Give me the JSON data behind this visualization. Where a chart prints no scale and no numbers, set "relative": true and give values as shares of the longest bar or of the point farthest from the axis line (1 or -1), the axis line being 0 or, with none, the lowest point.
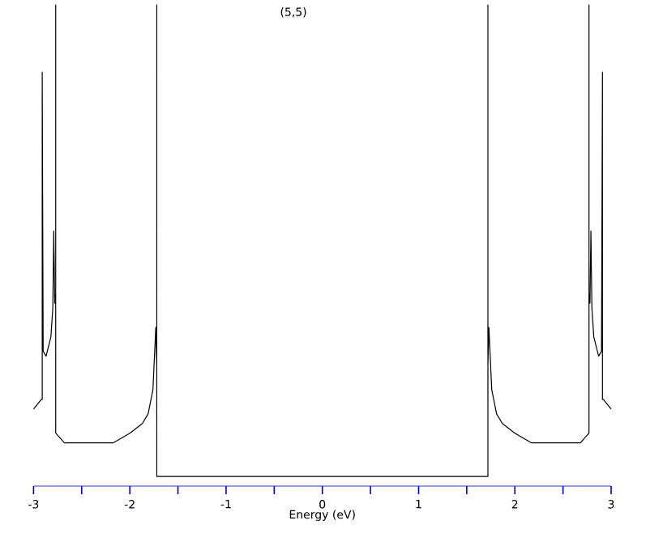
{
  "chart_data": {
    "type": "line",
    "title": "(5,5)",
    "xlabel": "Energy (eV)",
    "relative": true,
    "color": "#000000",
    "xlim": [
      -3,
      3
    ],
    "xticks": [
      -3,
      -2,
      -1,
      0,
      1,
      2,
      3
    ],
    "x": [
      -3.0,
      -2.92,
      -2.91,
      -2.91,
      -2.9,
      -2.87,
      -2.82,
      -2.8,
      -2.79,
      -2.78,
      -2.77,
      -2.77,
      -2.77,
      -2.68,
      -2.51,
      -2.34,
      -2.17,
      -2.0,
      -1.87,
      -1.81,
      -1.76,
      -1.73,
      -1.72,
      -1.72,
      -1.72,
      0,
      1.72,
      1.72,
      1.72,
      1.73,
      1.76,
      1.81,
      1.87,
      2.0,
      2.17,
      2.34,
      2.51,
      2.68,
      2.77,
      2.77,
      2.77,
      2.78,
      2.79,
      2.8,
      2.82,
      2.87,
      2.9,
      2.91,
      2.91,
      2.92,
      3.0
    ],
    "values": [
      0.16,
      0.18,
      0.18,
      0.86,
      0.28,
      0.27,
      0.31,
      0.37,
      0.53,
      0.38,
      0.4,
      1,
      0.11,
      0.09,
      0.09,
      0.09,
      0.09,
      0.11,
      0.13,
      0.15,
      0.2,
      0.33,
      0.25,
      1,
      0.02,
      0.02,
      0.02,
      1,
      0.25,
      0.33,
      0.2,
      0.15,
      0.13,
      0.11,
      0.09,
      0.09,
      0.09,
      0.09,
      0.11,
      1,
      0.4,
      0.38,
      0.53,
      0.37,
      0.31,
      0.27,
      0.28,
      0.86,
      0.18,
      0.18,
      0.16
    ]
  }
}
